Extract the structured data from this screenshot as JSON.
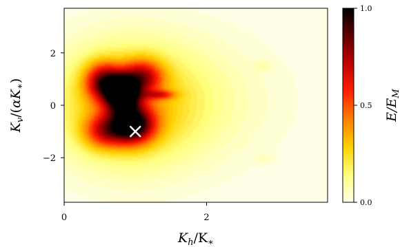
{
  "chart_data": {
    "type": "heatmap",
    "title": "",
    "xlabel": "K_h/K_*",
    "ylabel": "K_v/(αK_*)",
    "xlim": [
      0,
      3.7
    ],
    "ylim": [
      -3.7,
      3.7
    ],
    "xticks": [
      0,
      2
    ],
    "xtick_labels": [
      "0",
      "2"
    ],
    "yticks": [
      -2,
      0,
      2
    ],
    "ytick_labels": [
      "−2",
      "0",
      "2"
    ],
    "colorbar": {
      "label": "E/E_M",
      "range": [
        0.0,
        1.0
      ],
      "ticks": [
        0.0,
        0.5,
        1.0
      ],
      "tick_labels": [
        "0.0",
        "0.5",
        "1.0"
      ],
      "colormap": "hot_r",
      "stops": [
        "#ffffe8",
        "#ffff80",
        "#ffd000",
        "#ff8000",
        "#ff2000",
        "#c00000",
        "#600000",
        "#000000"
      ]
    },
    "components": [
      {
        "x": 0.82,
        "y": 0.45,
        "amp": 1.0,
        "sx": 0.16,
        "sy": 0.45
      },
      {
        "x": 0.95,
        "y": -0.75,
        "amp": 0.85,
        "sx": 0.22,
        "sy": 0.5
      },
      {
        "x": 0.55,
        "y": 0.9,
        "amp": 0.6,
        "sx": 0.18,
        "sy": 0.5
      },
      {
        "x": 1.1,
        "y": 1.1,
        "amp": 0.5,
        "sx": 0.2,
        "sy": 0.45
      },
      {
        "x": 0.55,
        "y": -1.0,
        "amp": 0.4,
        "sx": 0.2,
        "sy": 0.45
      },
      {
        "x": 1.35,
        "y": 0.4,
        "amp": 0.3,
        "sx": 0.15,
        "sy": 0.12
      },
      {
        "x": 0.85,
        "y": 0.0,
        "amp": 0.3,
        "sx": 0.7,
        "sy": 1.6
      },
      {
        "x": 1.6,
        "y": 0.2,
        "amp": 0.1,
        "sx": 1.0,
        "sy": 1.8
      },
      {
        "x": 2.8,
        "y": 1.5,
        "amp": 0.06,
        "sx": 0.1,
        "sy": 0.15
      },
      {
        "x": 2.8,
        "y": -2.0,
        "amp": 0.05,
        "sx": 0.1,
        "sy": 0.15
      }
    ],
    "marker": {
      "x": 1.0,
      "y": -1.0,
      "symbol": "x",
      "color": "#ffffff"
    }
  }
}
